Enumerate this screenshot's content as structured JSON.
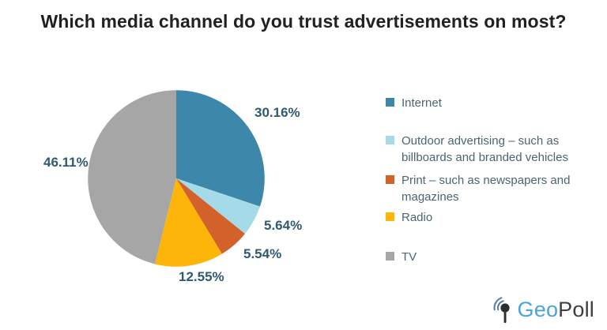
{
  "title": "Which media channel do you trust advertisements on most?",
  "chart_data": {
    "type": "pie",
    "title": "Which media channel do you trust advertisements on most?",
    "categories": [
      "Internet",
      "Outdoor advertising – such as billboards and branded vehicles",
      "Print – such as newspapers and magazines",
      "Radio",
      "TV"
    ],
    "values": [
      30.16,
      5.64,
      5.54,
      12.55,
      46.11
    ],
    "data_labels": [
      "30.16%",
      "5.64%",
      "5.54%",
      "12.55%",
      "46.11%"
    ],
    "colors": [
      "#3d87ab",
      "#a5dbe8",
      "#d2622a",
      "#fdb50a",
      "#a6a6a6"
    ],
    "slice_names": [
      "internet",
      "outdoor-advertising",
      "print",
      "radio",
      "tv"
    ],
    "start_angle_deg": 0,
    "direction": "clockwise",
    "legend_position": "right",
    "label_text_color": "#305a70",
    "legend_text_color": "#4b6572"
  },
  "logo": {
    "brand_geo": "Geo",
    "brand_poll": "Poll",
    "geo_color": "#4ba3d9",
    "poll_color": "#3e3e3e",
    "icon": "map-pin-signal-icon"
  }
}
